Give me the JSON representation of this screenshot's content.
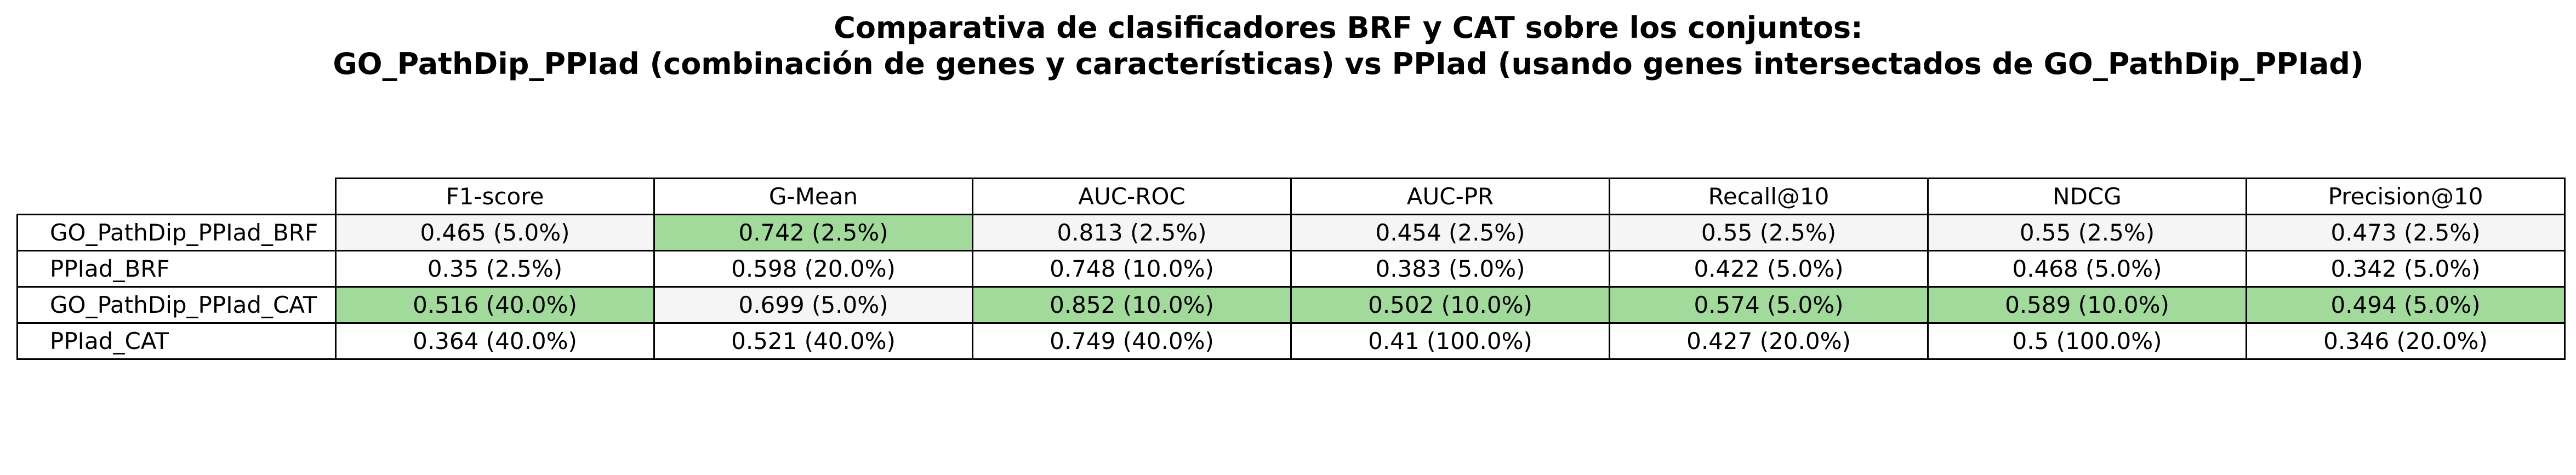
{
  "title": {
    "line1": "Comparativa de clasificadores BRF y CAT sobre los conjuntos:",
    "line2": "GO_PathDip_PPIad (combinación de genes y características) vs PPIad (usando genes intersectados de GO_PathDip_PPIad)"
  },
  "colors": {
    "highlight": "#a1da9b",
    "row_shade": "#f5f5f5",
    "border": "#000000"
  },
  "chart_data": {
    "type": "table",
    "columns": [
      "F1-score",
      "G-Mean",
      "AUC-ROC",
      "AUC-PR",
      "Recall@10",
      "NDCG",
      "Precision@10"
    ],
    "rows": [
      {
        "label": "GO_PathDip_PPIad_BRF",
        "cells": [
          "0.465 (5.0%)",
          "0.742 (2.5%)",
          "0.813 (2.5%)",
          "0.454 (2.5%)",
          "0.55 (2.5%)",
          "0.55 (2.5%)",
          "0.473 (2.5%)"
        ],
        "highlight": [
          false,
          true,
          false,
          false,
          false,
          false,
          false
        ]
      },
      {
        "label": "PPIad_BRF",
        "cells": [
          "0.35 (2.5%)",
          "0.598 (20.0%)",
          "0.748 (10.0%)",
          "0.383 (5.0%)",
          "0.422 (5.0%)",
          "0.468 (5.0%)",
          "0.342 (5.0%)"
        ],
        "highlight": [
          false,
          false,
          false,
          false,
          false,
          false,
          false
        ]
      },
      {
        "label": "GO_PathDip_PPIad_CAT",
        "cells": [
          "0.516 (40.0%)",
          "0.699 (5.0%)",
          "0.852 (10.0%)",
          "0.502 (10.0%)",
          "0.574 (5.0%)",
          "0.589 (10.0%)",
          "0.494 (5.0%)"
        ],
        "highlight": [
          true,
          false,
          true,
          true,
          true,
          true,
          true
        ]
      },
      {
        "label": "PPIad_CAT",
        "cells": [
          "0.364 (40.0%)",
          "0.521 (40.0%)",
          "0.749 (40.0%)",
          "0.41 (100.0%)",
          "0.427 (20.0%)",
          "0.5 (100.0%)",
          "0.346 (20.0%)"
        ],
        "highlight": [
          false,
          false,
          false,
          false,
          false,
          false,
          false
        ]
      }
    ]
  }
}
